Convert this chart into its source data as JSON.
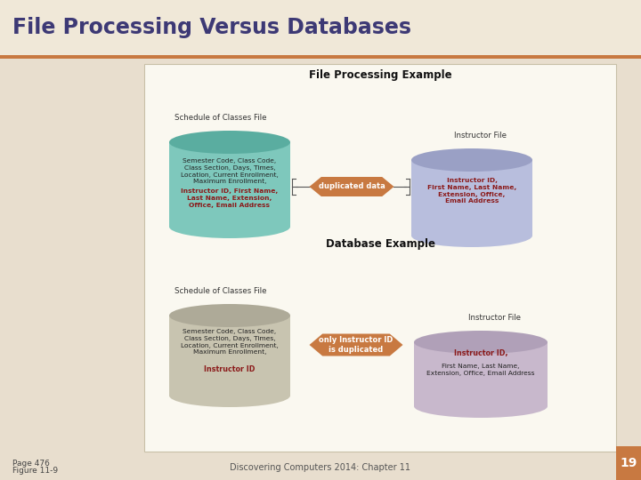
{
  "title": "File Processing Versus Databases",
  "title_color": "#3d3975",
  "title_bg": "#f0e8d8",
  "title_stripe_color": "#c87941",
  "slide_bg": "#e8dece",
  "diagram_bg": "#faf8f0",
  "fp_example_title": "File Processing Example",
  "db_example_title": "Database Example",
  "schedule_label": "Schedule of Classes File",
  "instructor_label": "Instructor File",
  "fp_schedule_color": "#7ec8bc",
  "fp_schedule_top_color": "#5aada0",
  "fp_instructor_color": "#b8bedd",
  "fp_instructor_top_color": "#9aa0c5",
  "db_schedule_color": "#c8c4b0",
  "db_schedule_top_color": "#aeaa98",
  "db_instructor_color": "#c8b8cc",
  "db_instructor_top_color": "#b0a0b8",
  "arrow_color": "#c87941",
  "fp_schedule_black_text": "Semester Code, Class Code,\nClass Section, Days, Times,\nLocation, Current Enrollment,\nMaximum Enrollment,",
  "fp_schedule_red_text": "Instructor ID, First Name,\nLast Name, Extension,\nOffice, Email Address",
  "fp_instructor_red_text": "Instructor ID,\nFirst Name, Last Name,\nExtension, Office,\nEmail Address",
  "db_schedule_black_text": "Semester Code, Class Code,\nClass Section, Days, Times,\nLocation, Current Enrollment,\nMaximum Enrollment,",
  "db_schedule_red_text": "Instructor ID",
  "db_instructor_black_text": "First Name, Last Name,\nExtension, Office, Email Address",
  "db_instructor_red_text": "Instructor ID,",
  "fp_arrow_label": "duplicated data",
  "db_arrow_label": "only Instructor ID\nis duplicated",
  "footer_left1": "Page 476",
  "footer_left2": "Figure 11-9",
  "footer_center": "Discovering Computers 2014: Chapter 11",
  "footer_num": "19",
  "footer_num_bg": "#c87941",
  "red_text_color": "#8b1a1a",
  "brace_color": "#555555",
  "label_color": "#333333"
}
